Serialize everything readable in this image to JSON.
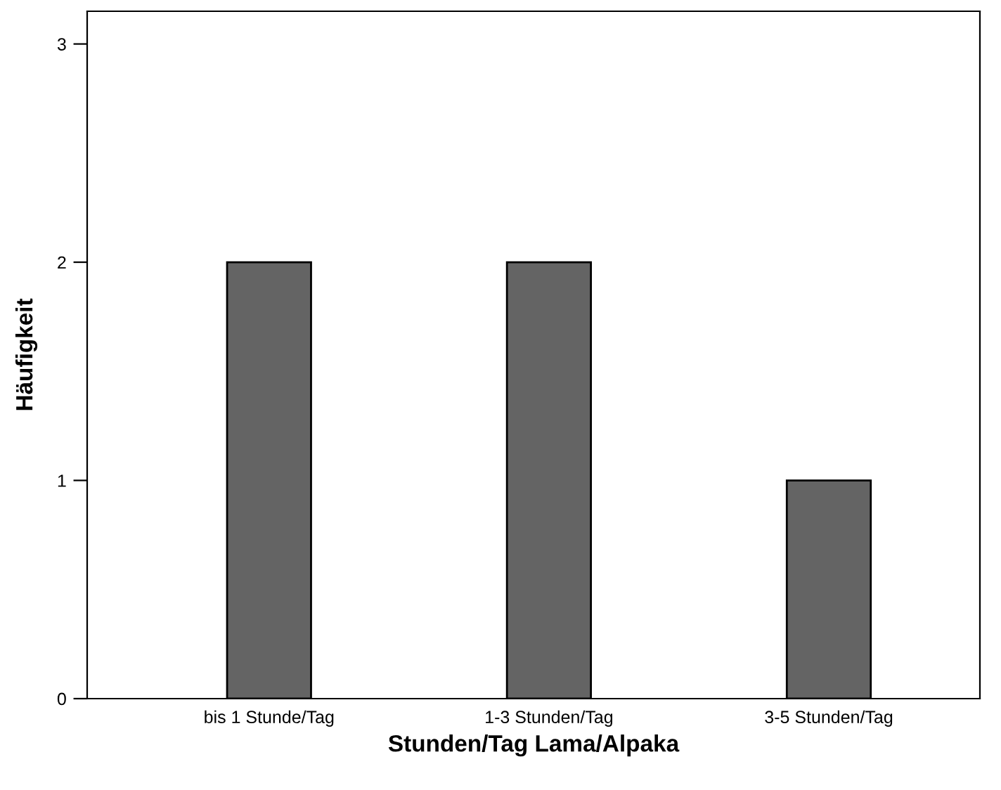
{
  "chart_data": {
    "type": "bar",
    "xlabel": "Stunden/Tag Lama/Alpaka",
    "ylabel": "Häufigkeit",
    "categories": [
      "bis 1 Stunde/Tag",
      "1-3 Stunden/Tag",
      "3-5 Stunden/Tag"
    ],
    "values": [
      2,
      2,
      1
    ],
    "color": "#646464",
    "ylim": [
      0,
      3.15
    ],
    "yticks": [
      0,
      1,
      2,
      3
    ],
    "grid": false,
    "legend": false
  }
}
